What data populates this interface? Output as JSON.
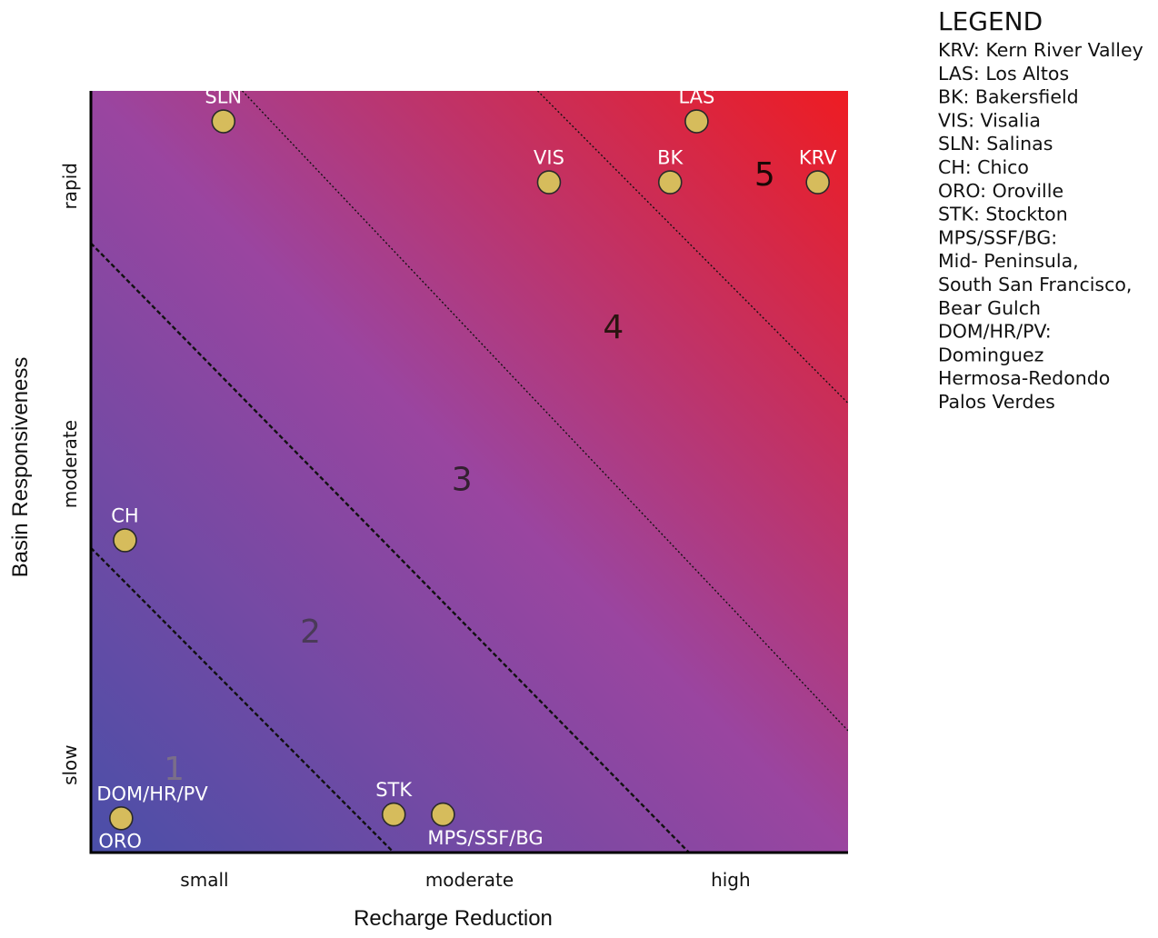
{
  "chart_data": {
    "type": "scatter",
    "title": "",
    "xlabel": "Recharge Reduction",
    "ylabel": "Basin Responsiveness",
    "x_ticks": [
      "small",
      "moderate",
      "high"
    ],
    "y_ticks": [
      "slow",
      "moderate",
      "rapid"
    ],
    "xlim": [
      0,
      10
    ],
    "ylim": [
      0,
      10
    ],
    "grid": false,
    "colors": {
      "low": "#4a4fa8",
      "mid": "#9a45a0",
      "high": "#ee1c22",
      "marker": "#d6bc5c"
    },
    "zones": [
      {
        "label": "1",
        "x": 1.1,
        "y": 1.1,
        "color": "#7a6e8a"
      },
      {
        "label": "2",
        "x": 2.9,
        "y": 2.9,
        "color": "#4a3a58"
      },
      {
        "label": "3",
        "x": 4.9,
        "y": 4.9,
        "color": "#332030"
      },
      {
        "label": "4",
        "x": 6.9,
        "y": 6.9,
        "color": "#2a1410"
      },
      {
        "label": "5",
        "x": 8.9,
        "y": 8.9,
        "color": "#1a0806"
      }
    ],
    "points": [
      {
        "label": "SLN",
        "x": 1.75,
        "y": 9.6,
        "label_pos": "above"
      },
      {
        "label": "LAS",
        "x": 8.0,
        "y": 9.6,
        "label_pos": "above"
      },
      {
        "label": "VIS",
        "x": 6.05,
        "y": 8.8,
        "label_pos": "above"
      },
      {
        "label": "BK",
        "x": 7.65,
        "y": 8.8,
        "label_pos": "above"
      },
      {
        "label": "KRV",
        "x": 9.6,
        "y": 8.8,
        "label_pos": "above"
      },
      {
        "label": "CH",
        "x": 0.45,
        "y": 4.1,
        "label_pos": "above"
      },
      {
        "label": "DOM/HR/PV",
        "x": 0.4,
        "y": 0.45,
        "label_pos": "above-right"
      },
      {
        "label": "ORO",
        "x": 0.4,
        "y": 0.45,
        "label_pos": "below-right"
      },
      {
        "label": "STK",
        "x": 4.0,
        "y": 0.5,
        "label_pos": "above"
      },
      {
        "label": "MPS/SSF/BG",
        "x": 4.65,
        "y": 0.5,
        "label_pos": "below-right"
      }
    ],
    "boundaries": [
      {
        "x1": 0,
        "y1": 4.0,
        "x2": 4.0,
        "y2": 0,
        "style": "dashed"
      },
      {
        "x1": 0,
        "y1": 8.0,
        "x2": 7.9,
        "y2": 0,
        "style": "dashed"
      },
      {
        "x1": 2.0,
        "y1": 10,
        "x2": 10,
        "y2": 1.6,
        "style": "dotted"
      },
      {
        "x1": 5.9,
        "y1": 10,
        "x2": 10,
        "y2": 5.9,
        "style": "dotted"
      }
    ],
    "legend": {
      "title": "LEGEND",
      "placement": "top-right",
      "entries": [
        "KRV: Kern River Valley",
        "LAS: Los Altos",
        "BK: Bakersfield",
        "VIS: Visalia",
        "SLN: Salinas",
        "CH: Chico",
        "ORO: Oroville",
        "STK: Stockton",
        "MPS/SSF/BG:",
        "Mid-  Peninsula,",
        "South San Francisco,",
        "Bear Gulch",
        "DOM/HR/PV:",
        "Dominguez",
        "Hermosa-Redondo",
        "Palos Verdes"
      ]
    }
  }
}
